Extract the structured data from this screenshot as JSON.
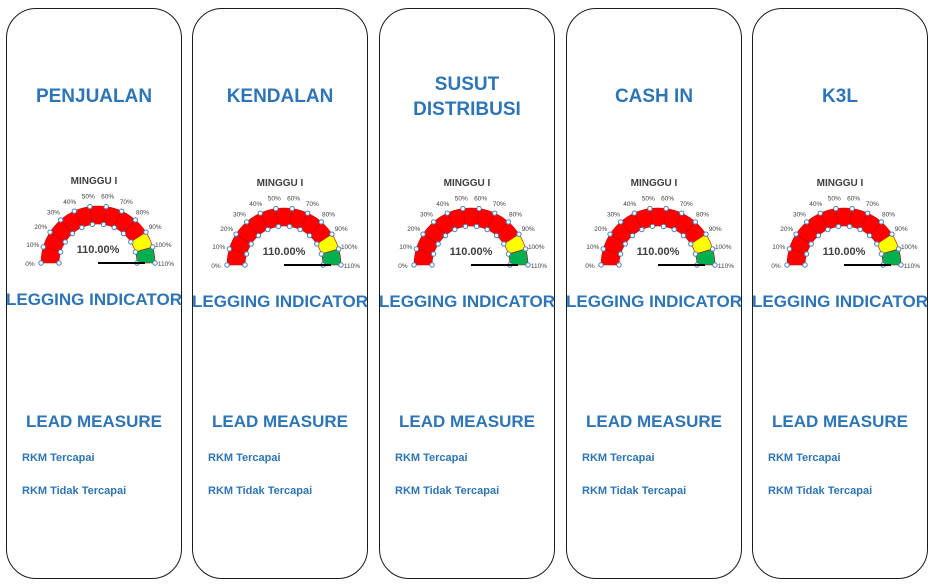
{
  "panels": [
    {
      "title": [
        "PENJUALAN"
      ],
      "week_label": "MINGGU I",
      "value_label": "110.00%",
      "lag_label": "LEGGING INDICATOR",
      "lead_label": "LEAD MEASURE",
      "items": [
        "RKM Tercapai",
        "RKM Tidak Tercapai"
      ]
    },
    {
      "title": [
        "KENDALAN"
      ],
      "week_label": "MINGGU I",
      "value_label": "110.00%",
      "lag_label": "LEGGING INDICATOR",
      "lead_label": "LEAD MEASURE",
      "items": [
        "RKM Tercapai",
        "RKM Tidak Tercapai"
      ]
    },
    {
      "title": [
        "SUSUT",
        "DISTRIBUSI"
      ],
      "week_label": "MINGGU I",
      "value_label": "110.00%",
      "lag_label": "LEGGING INDICATOR",
      "lead_label": "LEAD MEASURE",
      "items": [
        "RKM Tercapai",
        "RKM Tidak Tercapai"
      ]
    },
    {
      "title": [
        "CASH IN"
      ],
      "week_label": "MINGGU I",
      "value_label": "110.00%",
      "lag_label": "LEGGING INDICATOR",
      "lead_label": "LEAD MEASURE",
      "items": [
        "RKM Tercapai",
        "RKM Tidak Tercapai"
      ]
    },
    {
      "title": [
        "K3L"
      ],
      "week_label": "MINGGU I",
      "value_label": "110.00%",
      "lag_label": "LEGGING INDICATOR",
      "lead_label": "LEAD MEASURE",
      "items": [
        "RKM Tercapai",
        "RKM Tidak Tercapai"
      ]
    }
  ],
  "gauge": {
    "ticks": [
      "0%",
      "10%",
      "20%",
      "30%",
      "40%",
      "50%",
      "60%",
      "70%",
      "80%",
      "90%",
      "100%",
      "110%"
    ],
    "value_percent": 110,
    "max_percent": 110,
    "band_colors": [
      "#ff0000",
      "#ff0000",
      "#ff0000",
      "#ff0000",
      "#ff0000",
      "#ff0000",
      "#ff0000",
      "#ff0000",
      "#ff0000",
      "#ffff00",
      "#00b050"
    ],
    "needle_color": "#000000"
  }
}
